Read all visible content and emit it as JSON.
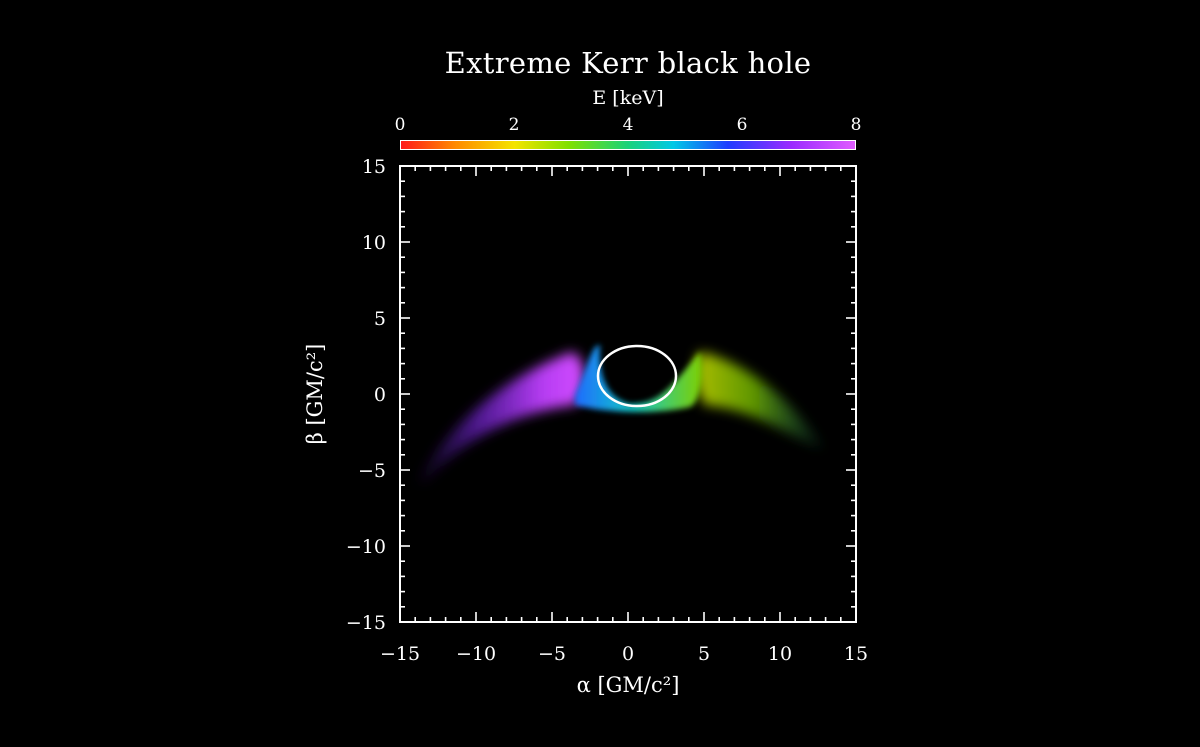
{
  "chart_data": {
    "type": "heatmap",
    "title": "Extreme Kerr black hole",
    "colorbar": {
      "label": "E [keV]",
      "range": [
        0,
        8
      ],
      "ticks": [
        "0",
        "2",
        "4",
        "6",
        "8"
      ],
      "colormap": [
        "#ff1a1a",
        "#ff8a00",
        "#f4e400",
        "#7fe000",
        "#19d27a",
        "#00c8e6",
        "#1f3cff",
        "#9b2cff",
        "#e05cff"
      ]
    },
    "xlabel": "α [GM/c²]",
    "ylabel": "β [GM/c²]",
    "xlim": [
      -15,
      15
    ],
    "ylim": [
      -15,
      15
    ],
    "xticks": [
      -15,
      -10,
      -5,
      0,
      5,
      10,
      15
    ],
    "yticks": [
      -15,
      -10,
      -5,
      0,
      5,
      10,
      15
    ],
    "xtick_labels": [
      "−15",
      "−10",
      "−5",
      "0",
      "5",
      "10",
      "15"
    ],
    "ytick_labels": [
      "−15",
      "−10",
      "−5",
      "0",
      "5",
      "10",
      "15"
    ],
    "shadow_contour": {
      "center": [
        0.5,
        1.0
      ],
      "radius_alpha": 2.6,
      "radius_beta": 2.0
    },
    "emission_regions": [
      {
        "side": "left",
        "alpha_range": [
          -14,
          -2.5
        ],
        "energy_keV": [
          5.5,
          7.8
        ]
      },
      {
        "side": "right",
        "alpha_range": [
          2.5,
          13
        ],
        "energy_keV": [
          2.5,
          4.0
        ]
      },
      {
        "side": "inner",
        "alpha_range": [
          -3,
          3
        ],
        "energy_keV": [
          4.0,
          5.5
        ]
      }
    ]
  },
  "colors": {
    "background": "#000000",
    "axes": "#ffffff",
    "shadow_contour": "#ffffff"
  }
}
